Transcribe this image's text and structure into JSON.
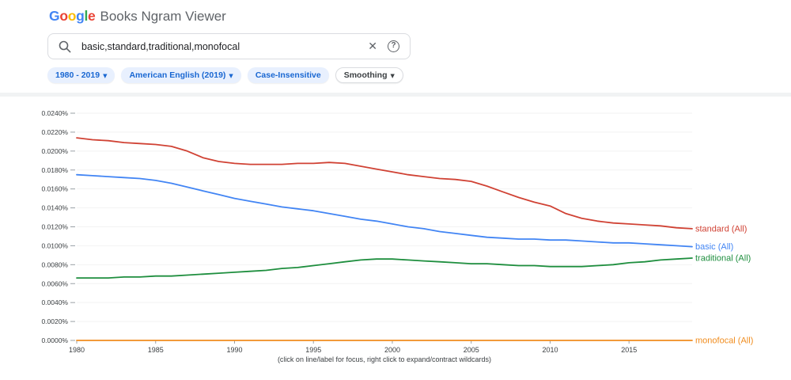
{
  "header": {
    "logo_chars": [
      "G",
      "o",
      "o",
      "g",
      "l",
      "e"
    ],
    "logo_colors": [
      "#4285F4",
      "#EA4335",
      "#FBBC05",
      "#4285F4",
      "#34A853",
      "#EA4335"
    ],
    "title": "Books Ngram Viewer"
  },
  "search": {
    "query": "basic,standard,traditional,monofocal",
    "clear_icon": "✕",
    "help_icon": "?"
  },
  "filters": {
    "dropdown_arrow": "▼",
    "year_range": "1980 - 2019",
    "corpus": "American English (2019)",
    "case_sensitivity": "Case-Insensitive",
    "smoothing": "Smoothing"
  },
  "chart_data": {
    "type": "line",
    "title": "",
    "xlabel": "",
    "ylabel": "",
    "grid": true,
    "legend_position": "right-end-labels",
    "xlim": [
      1980,
      2019
    ],
    "ylim": [
      0.0,
      0.024
    ],
    "xticks": [
      1980,
      1985,
      1990,
      1995,
      2000,
      2005,
      2010,
      2015
    ],
    "ytick_values": [
      0.0,
      0.002,
      0.004,
      0.006,
      0.008,
      0.01,
      0.012,
      0.014,
      0.016,
      0.018,
      0.02,
      0.022,
      0.024
    ],
    "ytick_labels": [
      "0.0000%",
      "0.0020%",
      "0.0040%",
      "0.0060%",
      "0.0080%",
      "0.0100%",
      "0.0120%",
      "0.0140%",
      "0.0160%",
      "0.0180%",
      "0.0200%",
      "0.0220%",
      "0.0240%"
    ],
    "x": [
      1980,
      1981,
      1982,
      1983,
      1984,
      1985,
      1986,
      1987,
      1988,
      1989,
      1990,
      1991,
      1992,
      1993,
      1994,
      1995,
      1996,
      1997,
      1998,
      1999,
      2000,
      2001,
      2002,
      2003,
      2004,
      2005,
      2006,
      2007,
      2008,
      2009,
      2010,
      2011,
      2012,
      2013,
      2014,
      2015,
      2016,
      2017,
      2018,
      2019
    ],
    "series": [
      {
        "name": "standard",
        "label": "standard (All)",
        "color": "#d04234",
        "values": [
          0.0214,
          0.0212,
          0.0211,
          0.0209,
          0.0208,
          0.0207,
          0.0205,
          0.02,
          0.0193,
          0.0189,
          0.0187,
          0.0186,
          0.0186,
          0.0186,
          0.0187,
          0.0187,
          0.0188,
          0.0187,
          0.0184,
          0.0181,
          0.0178,
          0.0175,
          0.0173,
          0.0171,
          0.017,
          0.0168,
          0.0163,
          0.0157,
          0.0151,
          0.0146,
          0.0142,
          0.0134,
          0.0129,
          0.0126,
          0.0124,
          0.0123,
          0.0122,
          0.0121,
          0.0119,
          0.0118
        ]
      },
      {
        "name": "basic",
        "label": "basic (All)",
        "color": "#4285f4",
        "values": [
          0.0175,
          0.0174,
          0.0173,
          0.0172,
          0.0171,
          0.0169,
          0.0166,
          0.0162,
          0.0158,
          0.0154,
          0.015,
          0.0147,
          0.0144,
          0.0141,
          0.0139,
          0.0137,
          0.0134,
          0.0131,
          0.0128,
          0.0126,
          0.0123,
          0.012,
          0.0118,
          0.0115,
          0.0113,
          0.0111,
          0.0109,
          0.0108,
          0.0107,
          0.0107,
          0.0106,
          0.0106,
          0.0105,
          0.0104,
          0.0103,
          0.0103,
          0.0102,
          0.0101,
          0.01,
          0.0099
        ]
      },
      {
        "name": "traditional",
        "label": "traditional (All)",
        "color": "#1e8e3e",
        "values": [
          0.0066,
          0.0066,
          0.0066,
          0.0067,
          0.0067,
          0.0068,
          0.0068,
          0.0069,
          0.007,
          0.0071,
          0.0072,
          0.0073,
          0.0074,
          0.0076,
          0.0077,
          0.0079,
          0.0081,
          0.0083,
          0.0085,
          0.0086,
          0.0086,
          0.0085,
          0.0084,
          0.0083,
          0.0082,
          0.0081,
          0.0081,
          0.008,
          0.0079,
          0.0079,
          0.0078,
          0.0078,
          0.0078,
          0.0079,
          0.008,
          0.0082,
          0.0083,
          0.0085,
          0.0086,
          0.0087
        ]
      },
      {
        "name": "monofocal",
        "label": "monofocal (All)",
        "color": "#f08c1e",
        "values": [
          0.0,
          0.0,
          0.0,
          0.0,
          0.0,
          0.0,
          0.0,
          0.0,
          0.0,
          0.0,
          0.0,
          0.0,
          0.0,
          0.0,
          0.0,
          0.0,
          0.0,
          0.0,
          0.0,
          0.0,
          0.0,
          0.0,
          0.0,
          0.0,
          0.0,
          0.0,
          0.0,
          0.0,
          0.0,
          0.0,
          0.0,
          0.0,
          0.0,
          0.0,
          0.0,
          0.0,
          0.0,
          0.0,
          0.0,
          0.0
        ]
      }
    ],
    "caption": "(click on line/label for focus, right click to expand/contract wildcards)"
  }
}
